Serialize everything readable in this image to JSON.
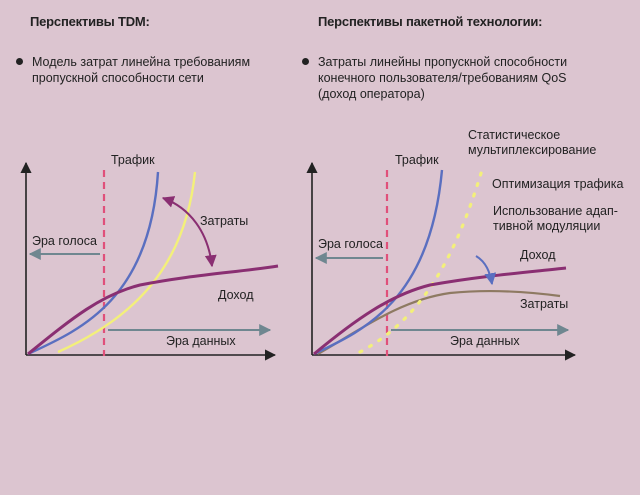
{
  "left": {
    "title": "Перспективы TDM:",
    "bullet_lines": [
      "Модель затрат линейна требованиям",
      "пропускной способности сети"
    ],
    "labels": {
      "traffic": "Трафик",
      "costs": "Затраты",
      "voice_era": "Эра голоса",
      "revenue": "Доход",
      "data_era": "Эра данных"
    }
  },
  "right": {
    "title": "Перспективы пакетной технологии:",
    "bullet_lines": [
      "Затраты линейны пропускной способности",
      "конечного пользователя/требованиям QoS",
      "(доход оператора)"
    ],
    "labels": {
      "stat_mux": [
        "Статистическое",
        "мультиплексирование"
      ],
      "traffic": "Трафик",
      "traffic_opt": "Оптимизация трафика",
      "adaptive_mod": [
        "Использование адап-",
        "тивной модуляции"
      ],
      "voice_era": "Эра голоса",
      "revenue": "Доход",
      "costs": "Затраты",
      "data_era": "Эра данных"
    }
  },
  "colors": {
    "background": "#dcc5d0",
    "traffic_curve": "#5a6fc0",
    "revenue_curve": "#8a2f72",
    "costs_tdm_curve": "#f3f07a",
    "costs_packet_curve": "#8e7a62",
    "era_boundary": "#e0507a",
    "era_arrow": "#6f8790",
    "axis": "#222222"
  }
}
